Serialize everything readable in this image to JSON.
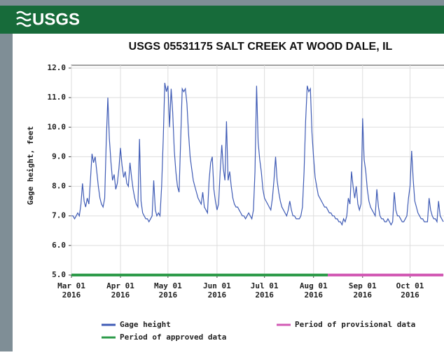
{
  "header": {
    "logo": "USGS"
  },
  "chart_data": {
    "type": "line",
    "title": "USGS 05531175 SALT CREEK AT WOOD DALE, IL",
    "y_label": "Gage height, feet",
    "x": [
      "2016-03-01",
      "2016-03-02",
      "2016-03-03",
      "2016-03-04",
      "2016-03-05",
      "2016-03-06",
      "2016-03-07",
      "2016-03-08",
      "2016-03-09",
      "2016-03-10",
      "2016-03-11",
      "2016-03-12",
      "2016-03-13",
      "2016-03-14",
      "2016-03-15",
      "2016-03-16",
      "2016-03-17",
      "2016-03-18",
      "2016-03-19",
      "2016-03-20",
      "2016-03-21",
      "2016-03-22",
      "2016-03-23",
      "2016-03-24",
      "2016-03-25",
      "2016-03-26",
      "2016-03-27",
      "2016-03-28",
      "2016-03-29",
      "2016-03-30",
      "2016-03-31",
      "2016-04-01",
      "2016-04-02",
      "2016-04-03",
      "2016-04-04",
      "2016-04-05",
      "2016-04-06",
      "2016-04-07",
      "2016-04-08",
      "2016-04-09",
      "2016-04-10",
      "2016-04-11",
      "2016-04-12",
      "2016-04-13",
      "2016-04-14",
      "2016-04-15",
      "2016-04-16",
      "2016-04-17",
      "2016-04-18",
      "2016-04-19",
      "2016-04-20",
      "2016-04-21",
      "2016-04-22",
      "2016-04-23",
      "2016-04-24",
      "2016-04-25",
      "2016-04-26",
      "2016-04-27",
      "2016-04-28",
      "2016-04-29",
      "2016-04-30",
      "2016-05-01",
      "2016-05-02",
      "2016-05-03",
      "2016-05-04",
      "2016-05-05",
      "2016-05-06",
      "2016-05-07",
      "2016-05-08",
      "2016-05-09",
      "2016-05-10",
      "2016-05-11",
      "2016-05-12",
      "2016-05-13",
      "2016-05-14",
      "2016-05-15",
      "2016-05-16",
      "2016-05-17",
      "2016-05-18",
      "2016-05-19",
      "2016-05-20",
      "2016-05-21",
      "2016-05-22",
      "2016-05-23",
      "2016-05-24",
      "2016-05-25",
      "2016-05-26",
      "2016-05-27",
      "2016-05-28",
      "2016-05-29",
      "2016-05-30",
      "2016-05-31",
      "2016-06-01",
      "2016-06-02",
      "2016-06-03",
      "2016-06-04",
      "2016-06-05",
      "2016-06-06",
      "2016-06-07",
      "2016-06-08",
      "2016-06-09",
      "2016-06-10",
      "2016-06-11",
      "2016-06-12",
      "2016-06-13",
      "2016-06-14",
      "2016-06-15",
      "2016-06-16",
      "2016-06-17",
      "2016-06-18",
      "2016-06-19",
      "2016-06-20",
      "2016-06-21",
      "2016-06-22",
      "2016-06-23",
      "2016-06-24",
      "2016-06-25",
      "2016-06-26",
      "2016-06-27",
      "2016-06-28",
      "2016-06-29",
      "2016-06-30",
      "2016-07-01",
      "2016-07-02",
      "2016-07-03",
      "2016-07-04",
      "2016-07-05",
      "2016-07-06",
      "2016-07-07",
      "2016-07-08",
      "2016-07-09",
      "2016-07-10",
      "2016-07-11",
      "2016-07-12",
      "2016-07-13",
      "2016-07-14",
      "2016-07-15",
      "2016-07-16",
      "2016-07-17",
      "2016-07-18",
      "2016-07-19",
      "2016-07-20",
      "2016-07-21",
      "2016-07-22",
      "2016-07-23",
      "2016-07-24",
      "2016-07-25",
      "2016-07-26",
      "2016-07-27",
      "2016-07-28",
      "2016-07-29",
      "2016-07-30",
      "2016-07-31",
      "2016-08-01",
      "2016-08-02",
      "2016-08-03",
      "2016-08-04",
      "2016-08-05",
      "2016-08-06",
      "2016-08-07",
      "2016-08-08",
      "2016-08-09",
      "2016-08-10",
      "2016-08-11",
      "2016-08-12",
      "2016-08-13",
      "2016-08-14",
      "2016-08-15",
      "2016-08-16",
      "2016-08-17",
      "2016-08-18",
      "2016-08-19",
      "2016-08-20",
      "2016-08-21",
      "2016-08-22",
      "2016-08-23",
      "2016-08-24",
      "2016-08-25",
      "2016-08-26",
      "2016-08-27",
      "2016-08-28",
      "2016-08-29",
      "2016-08-30",
      "2016-08-31",
      "2016-09-01",
      "2016-09-02",
      "2016-09-03",
      "2016-09-04",
      "2016-09-05",
      "2016-09-06",
      "2016-09-07",
      "2016-09-08",
      "2016-09-09",
      "2016-09-10",
      "2016-09-11",
      "2016-09-12",
      "2016-09-13",
      "2016-09-14",
      "2016-09-15",
      "2016-09-16",
      "2016-09-17",
      "2016-09-18",
      "2016-09-19",
      "2016-09-20",
      "2016-09-21",
      "2016-09-22",
      "2016-09-23",
      "2016-09-24",
      "2016-09-25",
      "2016-09-26",
      "2016-09-27",
      "2016-09-28",
      "2016-09-29",
      "2016-09-30",
      "2016-10-01",
      "2016-10-02",
      "2016-10-03",
      "2016-10-04",
      "2016-10-05",
      "2016-10-06",
      "2016-10-07",
      "2016-10-08",
      "2016-10-09",
      "2016-10-10",
      "2016-10-11",
      "2016-10-12",
      "2016-10-13",
      "2016-10-14",
      "2016-10-15",
      "2016-10-16",
      "2016-10-17",
      "2016-10-18",
      "2016-10-19",
      "2016-10-20",
      "2016-10-21",
      "2016-10-22"
    ],
    "series": [
      {
        "name": "Gage height",
        "color": "#3f5bb5",
        "values": [
          7.0,
          7.0,
          6.9,
          7.0,
          7.1,
          7.0,
          7.4,
          8.1,
          7.5,
          7.3,
          7.6,
          7.4,
          8.2,
          9.1,
          8.8,
          9.0,
          8.5,
          8.0,
          7.6,
          7.4,
          7.3,
          7.6,
          9.5,
          11.0,
          9.6,
          8.8,
          8.2,
          8.4,
          7.9,
          8.1,
          8.6,
          9.3,
          8.7,
          8.3,
          8.5,
          8.1,
          8.0,
          8.8,
          8.3,
          7.9,
          7.6,
          7.4,
          7.3,
          9.6,
          7.5,
          7.1,
          7.0,
          6.9,
          6.9,
          6.8,
          6.9,
          7.0,
          8.2,
          7.2,
          7.0,
          7.1,
          7.0,
          8.0,
          9.6,
          11.5,
          11.2,
          11.4,
          10.0,
          11.3,
          10.5,
          9.2,
          8.5,
          8.0,
          7.8,
          9.5,
          11.3,
          11.2,
          11.3,
          10.8,
          9.8,
          9.0,
          8.6,
          8.2,
          8.0,
          7.8,
          7.6,
          7.5,
          7.4,
          7.8,
          7.3,
          7.2,
          7.1,
          8.2,
          8.8,
          9.0,
          7.9,
          7.5,
          7.2,
          7.4,
          8.5,
          9.4,
          8.6,
          8.2,
          10.2,
          8.2,
          8.5,
          8.0,
          7.6,
          7.4,
          7.3,
          7.3,
          7.2,
          7.1,
          7.0,
          7.0,
          6.9,
          7.0,
          7.1,
          7.0,
          6.9,
          7.2,
          8.5,
          11.4,
          9.5,
          8.9,
          8.5,
          7.9,
          7.6,
          7.5,
          7.4,
          7.3,
          7.2,
          7.6,
          8.2,
          9.0,
          8.2,
          7.8,
          7.5,
          7.3,
          7.2,
          7.1,
          7.0,
          7.2,
          7.5,
          7.2,
          7.0,
          7.0,
          6.9,
          6.9,
          6.9,
          7.0,
          7.3,
          8.5,
          10.2,
          11.4,
          11.2,
          11.3,
          9.8,
          9.0,
          8.3,
          8.0,
          7.7,
          7.6,
          7.5,
          7.4,
          7.3,
          7.3,
          7.2,
          7.1,
          7.1,
          7.0,
          7.0,
          6.9,
          6.9,
          6.8,
          6.8,
          6.7,
          6.9,
          6.8,
          7.0,
          7.6,
          7.4,
          8.5,
          8.0,
          7.6,
          8.0,
          7.4,
          7.2,
          7.4,
          10.3,
          8.9,
          8.5,
          7.9,
          7.5,
          7.3,
          7.2,
          7.1,
          7.0,
          7.9,
          7.3,
          7.0,
          6.9,
          6.9,
          6.8,
          6.8,
          6.9,
          6.8,
          6.7,
          6.8,
          7.8,
          7.2,
          7.0,
          7.0,
          6.9,
          6.8,
          6.8,
          6.9,
          7.0,
          7.6,
          8.0,
          9.2,
          8.2,
          7.5,
          7.3,
          7.1,
          7.0,
          6.9,
          6.9,
          6.8,
          6.8,
          6.8,
          7.6,
          7.2,
          7.0,
          6.9,
          6.9,
          6.8,
          7.5,
          7.0,
          6.9,
          6.8
        ]
      }
    ],
    "periods": [
      {
        "name": "Period of approved data",
        "color": "#2e9b4a",
        "start": "2016-03-01",
        "end": "2016-08-10"
      },
      {
        "name": "Period of provisional data",
        "color": "#d25ab4",
        "start": "2016-08-10",
        "end": "2016-10-22"
      }
    ],
    "xlim": [
      "2016-03-01",
      "2016-10-22"
    ],
    "xticks": [
      {
        "value": "2016-03-01",
        "label": [
          "Mar 01",
          "2016"
        ]
      },
      {
        "value": "2016-04-01",
        "label": [
          "Apr 01",
          "2016"
        ]
      },
      {
        "value": "2016-05-01",
        "label": [
          "May 01",
          "2016"
        ]
      },
      {
        "value": "2016-06-01",
        "label": [
          "Jun 01",
          "2016"
        ]
      },
      {
        "value": "2016-07-01",
        "label": [
          "Jul 01",
          "2016"
        ]
      },
      {
        "value": "2016-08-01",
        "label": [
          "Aug 01",
          "2016"
        ]
      },
      {
        "value": "2016-09-01",
        "label": [
          "Sep 01",
          "2016"
        ]
      },
      {
        "value": "2016-10-01",
        "label": [
          "Oct 01",
          "2016"
        ]
      }
    ],
    "ylim": [
      5,
      12
    ],
    "yticks": [
      {
        "value": 5,
        "label": "5.0"
      },
      {
        "value": 6,
        "label": "6.0"
      },
      {
        "value": 7,
        "label": "7.0"
      },
      {
        "value": 8,
        "label": "8.0"
      },
      {
        "value": 9,
        "label": "9.0"
      },
      {
        "value": 10,
        "label": "10.0"
      },
      {
        "value": 11,
        "label": "11.0"
      },
      {
        "value": 12,
        "label": "12.0"
      }
    ],
    "grid": true
  }
}
